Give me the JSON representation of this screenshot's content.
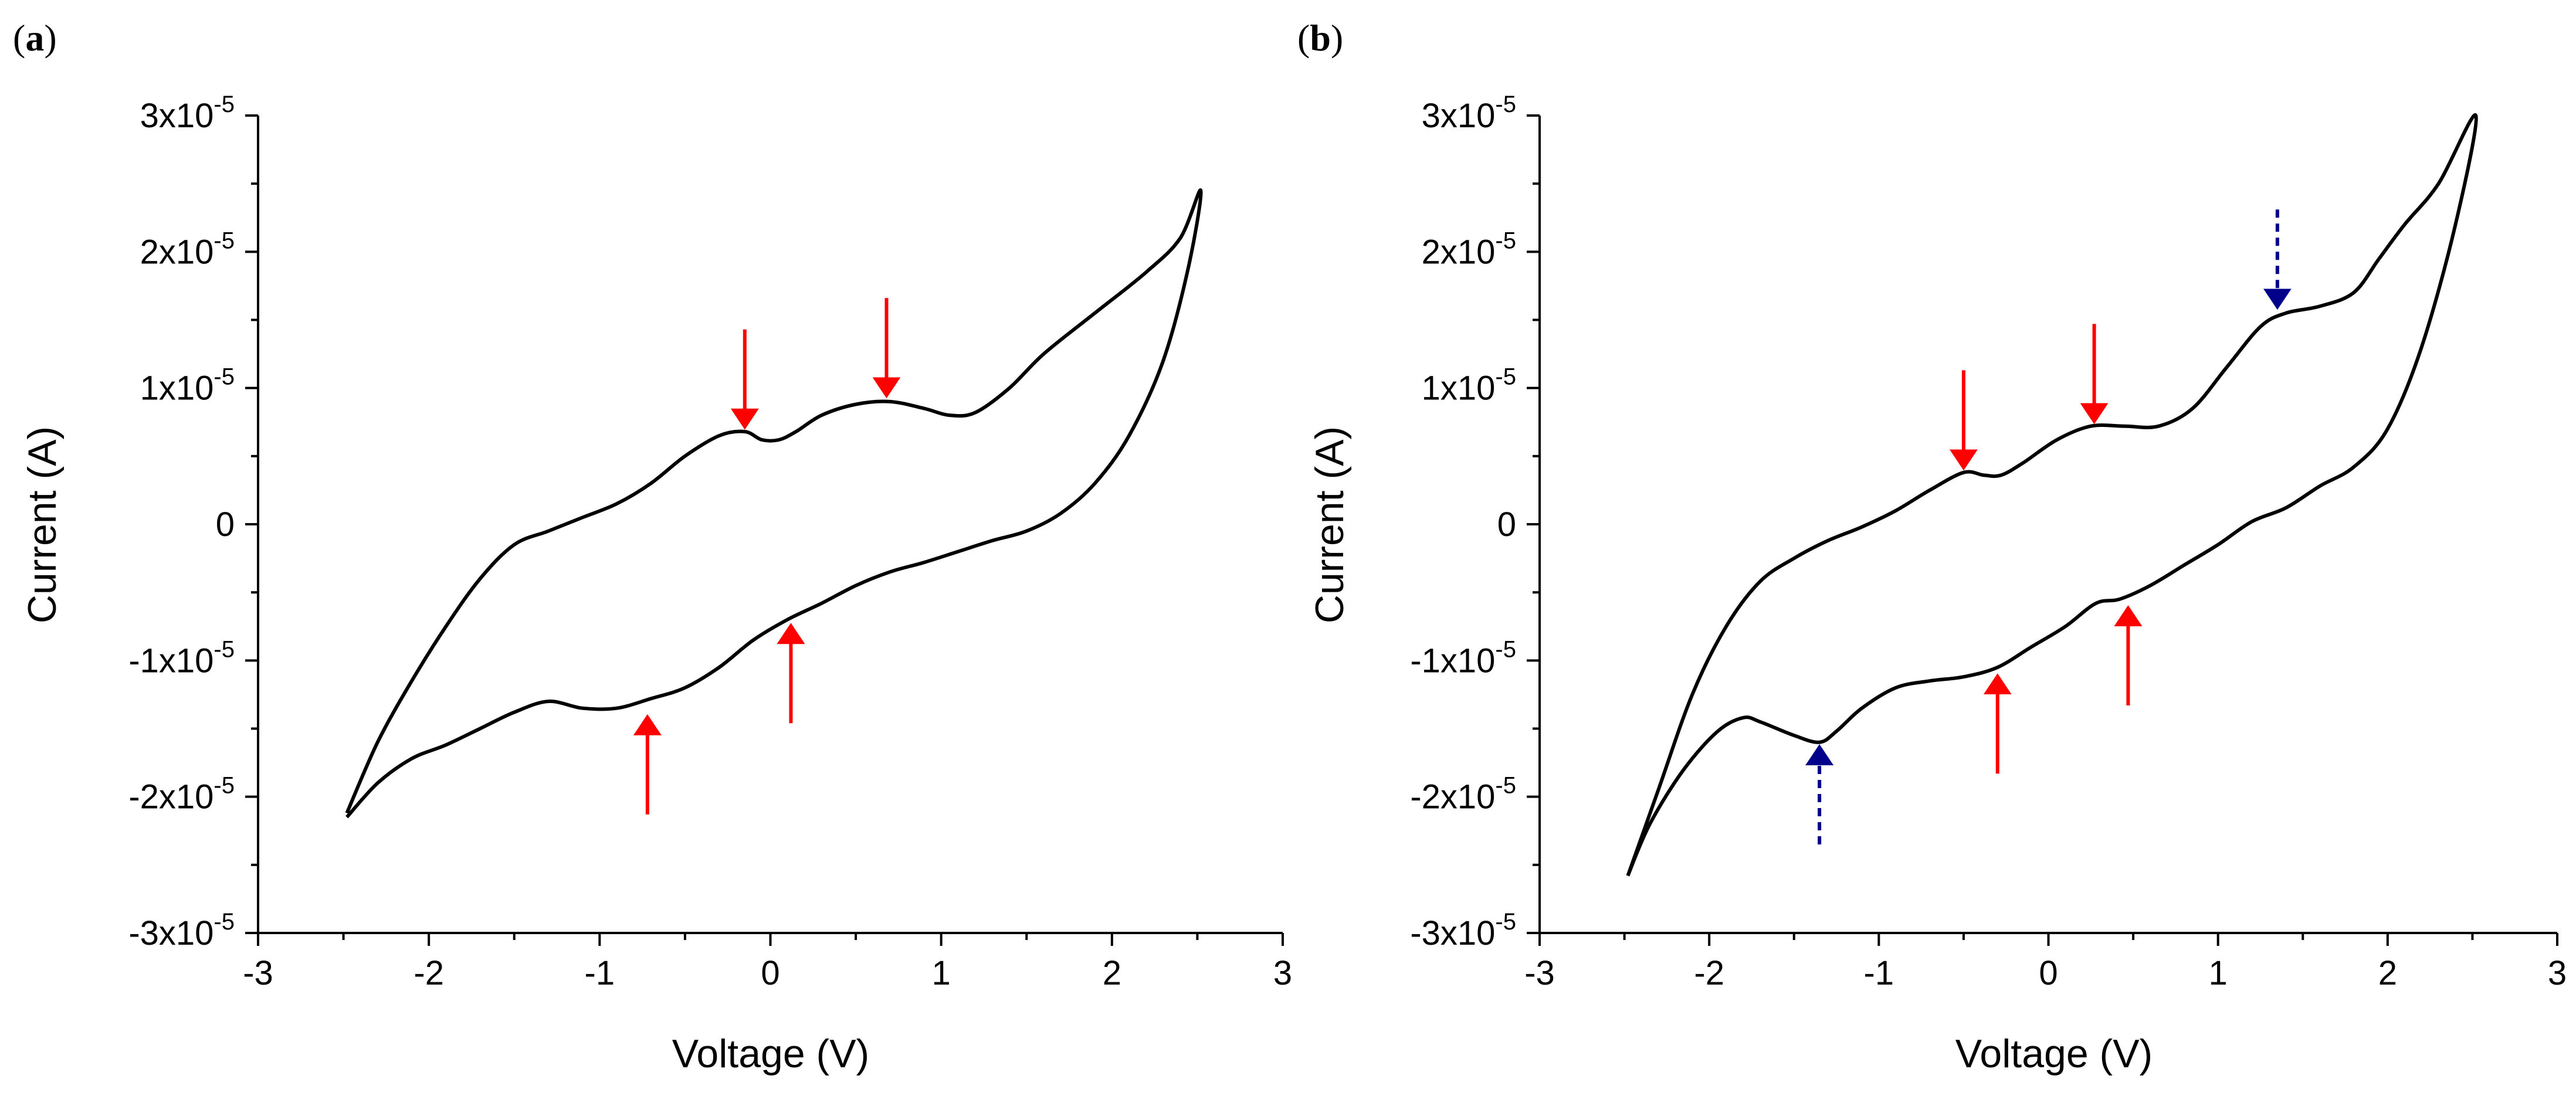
{
  "chart_data": [
    {
      "panel_label": "a",
      "type": "line",
      "xlabel": "Voltage (V)",
      "ylabel": "Current (A)",
      "xlim": [
        -3,
        3
      ],
      "ylim": [
        -3e-05,
        3e-05
      ],
      "x_ticks": [
        -3,
        -2,
        -1,
        0,
        1,
        2,
        3
      ],
      "x_tick_labels": [
        "-3",
        "-2",
        "-1",
        "0",
        "1",
        "2",
        "3"
      ],
      "y_ticks": [
        3e-05,
        2e-05,
        1e-05,
        0,
        -1e-05,
        -2e-05,
        -3e-05
      ],
      "y_tick_labels": [
        {
          "base": "3x10",
          "exp": "-5"
        },
        {
          "base": "2x10",
          "exp": "-5"
        },
        {
          "base": "1x10",
          "exp": "-5"
        },
        {
          "base": "0",
          "exp": ""
        },
        {
          "base": "-1x10",
          "exp": "-5"
        },
        {
          "base": "-2x10",
          "exp": "-5"
        },
        {
          "base": "-3x10",
          "exp": "-5"
        }
      ],
      "grid": false,
      "series": [
        {
          "color": "#000000",
          "x": [
            -2.48,
            -2.3,
            -2.1,
            -1.9,
            -1.7,
            -1.5,
            -1.3,
            -1.1,
            -0.9,
            -0.7,
            -0.5,
            -0.3,
            -0.15,
            -0.05,
            0.05,
            0.15,
            0.3,
            0.5,
            0.7,
            0.9,
            1.05,
            1.2,
            1.4,
            1.6,
            1.9,
            2.2,
            2.4,
            2.52,
            2.45,
            2.3,
            2.1,
            1.9,
            1.7,
            1.5,
            1.3,
            1.1,
            0.9,
            0.7,
            0.5,
            0.3,
            0.1,
            -0.1,
            -0.3,
            -0.5,
            -0.7,
            -0.9,
            -1.1,
            -1.3,
            -1.5,
            -1.7,
            -1.9,
            -2.1,
            -2.3,
            -2.48
          ],
          "y": [
            -2.12e-05,
            -1.6e-05,
            -1.15e-05,
            -7.5e-06,
            -4e-06,
            -1.5e-06,
            -5e-07,
            5e-07,
            1.5e-06,
            3e-06,
            5e-06,
            6.5e-06,
            6.8e-06,
            6.2e-06,
            6.2e-06,
            6.8e-06,
            8e-06,
            8.8e-06,
            9e-06,
            8.5e-06,
            8e-06,
            8.2e-06,
            1e-05,
            1.25e-05,
            1.55e-05,
            1.85e-05,
            2.1e-05,
            2.45e-05,
            1.9e-05,
            1.2e-05,
            6.5e-06,
            3e-06,
            8e-07,
            -5e-07,
            -1.2e-06,
            -2e-06,
            -2.8e-06,
            -3.5e-06,
            -4.5e-06,
            -5.8e-06,
            -7e-06,
            -8.5e-06,
            -1.05e-05,
            -1.2e-05,
            -1.28e-05,
            -1.35e-05,
            -1.35e-05,
            -1.3e-05,
            -1.38e-05,
            -1.5e-05,
            -1.62e-05,
            -1.72e-05,
            -1.9e-05,
            -2.15e-05
          ]
        }
      ],
      "annotations": [
        {
          "kind": "arrow-down",
          "x": -0.15,
          "y": 7.2e-06,
          "color": "#ff0000",
          "style": "solid"
        },
        {
          "kind": "arrow-down",
          "x": 0.68,
          "y": 9.5e-06,
          "color": "#ff0000",
          "style": "solid"
        },
        {
          "kind": "arrow-up",
          "x": 0.12,
          "y": -7.5e-06,
          "color": "#ff0000",
          "style": "solid"
        },
        {
          "kind": "arrow-up",
          "x": -0.72,
          "y": -1.42e-05,
          "color": "#ff0000",
          "style": "solid"
        }
      ]
    },
    {
      "panel_label": "b",
      "type": "line",
      "xlabel": "Voltage (V)",
      "ylabel": "Current (A)",
      "xlim": [
        -3,
        3
      ],
      "ylim": [
        -3e-05,
        3e-05
      ],
      "x_ticks": [
        -3,
        -2,
        -1,
        0,
        1,
        2,
        3
      ],
      "x_tick_labels": [
        "-3",
        "-2",
        "-1",
        "0",
        "1",
        "2",
        "3"
      ],
      "y_ticks": [
        3e-05,
        2e-05,
        1e-05,
        0,
        -1e-05,
        -2e-05,
        -3e-05
      ],
      "y_tick_labels": [
        {
          "base": "3x10",
          "exp": "-5"
        },
        {
          "base": "2x10",
          "exp": "-5"
        },
        {
          "base": "1x10",
          "exp": "-5"
        },
        {
          "base": "0",
          "exp": ""
        },
        {
          "base": "-1x10",
          "exp": "-5"
        },
        {
          "base": "-2x10",
          "exp": "-5"
        },
        {
          "base": "-3x10",
          "exp": "-5"
        }
      ],
      "grid": false,
      "series": [
        {
          "color": "#000000",
          "x": [
            -2.48,
            -2.3,
            -2.1,
            -1.9,
            -1.7,
            -1.5,
            -1.3,
            -1.1,
            -0.9,
            -0.7,
            -0.5,
            -0.38,
            -0.28,
            -0.15,
            0.05,
            0.25,
            0.45,
            0.65,
            0.85,
            1.05,
            1.25,
            1.4,
            1.6,
            1.8,
            1.95,
            2.1,
            2.3,
            2.52,
            2.4,
            2.2,
            2.0,
            1.8,
            1.6,
            1.4,
            1.2,
            1.0,
            0.8,
            0.6,
            0.42,
            0.28,
            0.1,
            -0.1,
            -0.3,
            -0.5,
            -0.7,
            -0.9,
            -1.1,
            -1.25,
            -1.35,
            -1.5,
            -1.7,
            -1.8,
            -1.95,
            -2.15,
            -2.35,
            -2.48
          ],
          "y": [
            -2.58e-05,
            -1.95e-05,
            -1.25e-05,
            -7.5e-06,
            -4.2e-06,
            -2.5e-06,
            -1.2e-06,
            -2e-07,
            1e-06,
            2.5e-06,
            3.8e-06,
            3.6e-06,
            3.6e-06,
            4.5e-06,
            6.2e-06,
            7.2e-06,
            7.2e-06,
            7.2e-06,
            8.5e-06,
            1.15e-05,
            1.45e-05,
            1.55e-05,
            1.6e-05,
            1.7e-05,
            1.95e-05,
            2.2e-05,
            2.5e-05,
            3e-05,
            2.2e-05,
            1.3e-05,
            7e-06,
            4.2e-06,
            2.8e-06,
            1.2e-06,
            2e-07,
            -1.5e-06,
            -3e-06,
            -4.5e-06,
            -5.5e-06,
            -5.8e-06,
            -7.5e-06,
            -9e-06,
            -1.05e-05,
            -1.12e-05,
            -1.15e-05,
            -1.2e-05,
            -1.35e-05,
            -1.52e-05,
            -1.6e-05,
            -1.55e-05,
            -1.45e-05,
            -1.42e-05,
            -1.52e-05,
            -1.8e-05,
            -2.2e-05,
            -2.58e-05
          ]
        }
      ],
      "annotations": [
        {
          "kind": "arrow-down",
          "x": -0.5,
          "y": 4.2e-06,
          "color": "#ff0000",
          "style": "solid"
        },
        {
          "kind": "arrow-down",
          "x": 0.27,
          "y": 7.6e-06,
          "color": "#ff0000",
          "style": "solid"
        },
        {
          "kind": "arrow-up",
          "x": -0.3,
          "y": -1.12e-05,
          "color": "#ff0000",
          "style": "solid"
        },
        {
          "kind": "arrow-up",
          "x": 0.47,
          "y": -6.2e-06,
          "color": "#ff0000",
          "style": "solid"
        },
        {
          "kind": "arrow-down",
          "x": 1.35,
          "y": 1.6e-05,
          "color": "#00008b",
          "style": "dashed"
        },
        {
          "kind": "arrow-up",
          "x": -1.35,
          "y": -1.64e-05,
          "color": "#00008b",
          "style": "dashed"
        }
      ]
    }
  ]
}
